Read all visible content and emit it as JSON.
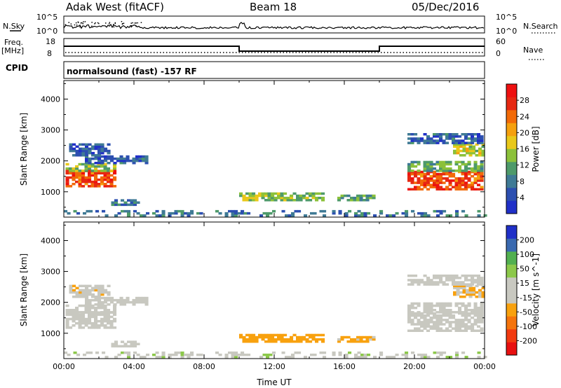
{
  "header": {
    "station": "Adak West (fitACF)",
    "beam": "Beam 18",
    "date": "05/Dec/2016"
  },
  "strips": {
    "nsky_label": "N.Sky",
    "nsky_ticks": [
      "10^5",
      "10^0"
    ],
    "nsearch_label": "N.Search",
    "nsearch_ticks": [
      "10^5",
      "10^0"
    ],
    "freq_label": "Freq.",
    "freq_unit": "[MHz]",
    "freq_ticks": [
      "18",
      "8"
    ],
    "nave_label": "Nave",
    "nave_ticks": [
      "60",
      "0"
    ],
    "cpid_label": "CPID",
    "cpid_text": "normalsound (fast) -157 RF"
  },
  "chart_data": [
    {
      "type": "heatmap",
      "name": "power-panel",
      "ylabel": "Slant Range [km]",
      "ylim": [
        180,
        4600
      ],
      "yticks": [
        1000,
        2000,
        3000,
        4000
      ],
      "xlim": [
        0,
        24
      ],
      "colorbar": {
        "label": "Power [dB]",
        "ticks": [
          "28",
          "24",
          "20",
          "16",
          "12",
          "8",
          "4"
        ],
        "range": [
          0,
          32
        ],
        "colors": [
          "#2030c8",
          "#2c4fb0",
          "#3f7a95",
          "#4e9a6a",
          "#8cc13a",
          "#e9c81a",
          "#f5a00e",
          "#f26a08",
          "#e62812",
          "#ee1010"
        ]
      },
      "echo_regions": [
        {
          "t": [
            0.1,
            2.9
          ],
          "r": [
            1150,
            1650
          ],
          "value": 26
        },
        {
          "t": [
            0.1,
            2.9
          ],
          "r": [
            1650,
            1900
          ],
          "value": 14
        },
        {
          "t": [
            1.2,
            4.7
          ],
          "r": [
            1900,
            2150
          ],
          "value": 6
        },
        {
          "t": [
            0.3,
            2.6
          ],
          "r": [
            2150,
            2550
          ],
          "value": 5
        },
        {
          "t": [
            2.7,
            4.2
          ],
          "r": [
            550,
            750
          ],
          "value": 7
        },
        {
          "t": [
            10.0,
            14.8
          ],
          "r": [
            700,
            950
          ],
          "value": 14
        },
        {
          "t": [
            15.6,
            17.8
          ],
          "r": [
            700,
            850
          ],
          "value": 12
        },
        {
          "t": [
            19.6,
            23.9
          ],
          "r": [
            1050,
            1650
          ],
          "value": 26
        },
        {
          "t": [
            19.6,
            23.9
          ],
          "r": [
            1650,
            1950
          ],
          "value": 12
        },
        {
          "t": [
            22.2,
            23.9
          ],
          "r": [
            2150,
            2550
          ],
          "value": 16
        },
        {
          "t": [
            19.6,
            23.9
          ],
          "r": [
            2550,
            2900
          ],
          "value": 6
        },
        {
          "t": [
            0,
            24
          ],
          "r": [
            200,
            360
          ],
          "value": 8
        }
      ]
    },
    {
      "type": "heatmap",
      "name": "velocity-panel",
      "ylabel": "Slant Range [km]",
      "ylim": [
        180,
        4600
      ],
      "yticks": [
        1000,
        2000,
        3000,
        4000
      ],
      "xlabel": "Time UT",
      "xlim": [
        0,
        24
      ],
      "xticks": [
        "00:00",
        "04:00",
        "08:00",
        "12:00",
        "16:00",
        "20:00",
        "00:00"
      ],
      "colorbar": {
        "label": "Velocity [m s^-1]",
        "ticks": [
          "200",
          "100",
          "50",
          "15",
          "-15",
          "-50",
          "-100",
          "-200"
        ],
        "range": [
          -250,
          250
        ],
        "colors": [
          "#e81010",
          "#f23a10",
          "#f5740c",
          "#f8a10e",
          "#c8c8c0",
          "#c8c8c0",
          "#8cc84a",
          "#52b050",
          "#3a6ab0",
          "#2030c8"
        ]
      },
      "echo_regions": [
        {
          "t": [
            0.1,
            2.9
          ],
          "r": [
            1150,
            1650
          ],
          "value": 0
        },
        {
          "t": [
            0.1,
            2.9
          ],
          "r": [
            1650,
            1900
          ],
          "value": 0
        },
        {
          "t": [
            1.2,
            4.7
          ],
          "r": [
            1900,
            2150
          ],
          "value": 0
        },
        {
          "t": [
            0.3,
            2.6
          ],
          "r": [
            2150,
            2550
          ],
          "value": -40
        },
        {
          "t": [
            2.7,
            4.2
          ],
          "r": [
            550,
            750
          ],
          "value": 0
        },
        {
          "t": [
            10.0,
            14.8
          ],
          "r": [
            700,
            950
          ],
          "value": -70
        },
        {
          "t": [
            15.6,
            17.8
          ],
          "r": [
            700,
            850
          ],
          "value": -60
        },
        {
          "t": [
            19.6,
            23.9
          ],
          "r": [
            1050,
            1650
          ],
          "value": 0
        },
        {
          "t": [
            19.6,
            23.9
          ],
          "r": [
            1650,
            1950
          ],
          "value": 0
        },
        {
          "t": [
            22.2,
            23.9
          ],
          "r": [
            2150,
            2550
          ],
          "value": -50
        },
        {
          "t": [
            19.6,
            23.9
          ],
          "r": [
            2550,
            2900
          ],
          "value": 0
        },
        {
          "t": [
            0,
            24
          ],
          "r": [
            200,
            360
          ],
          "value": 40
        }
      ]
    }
  ]
}
